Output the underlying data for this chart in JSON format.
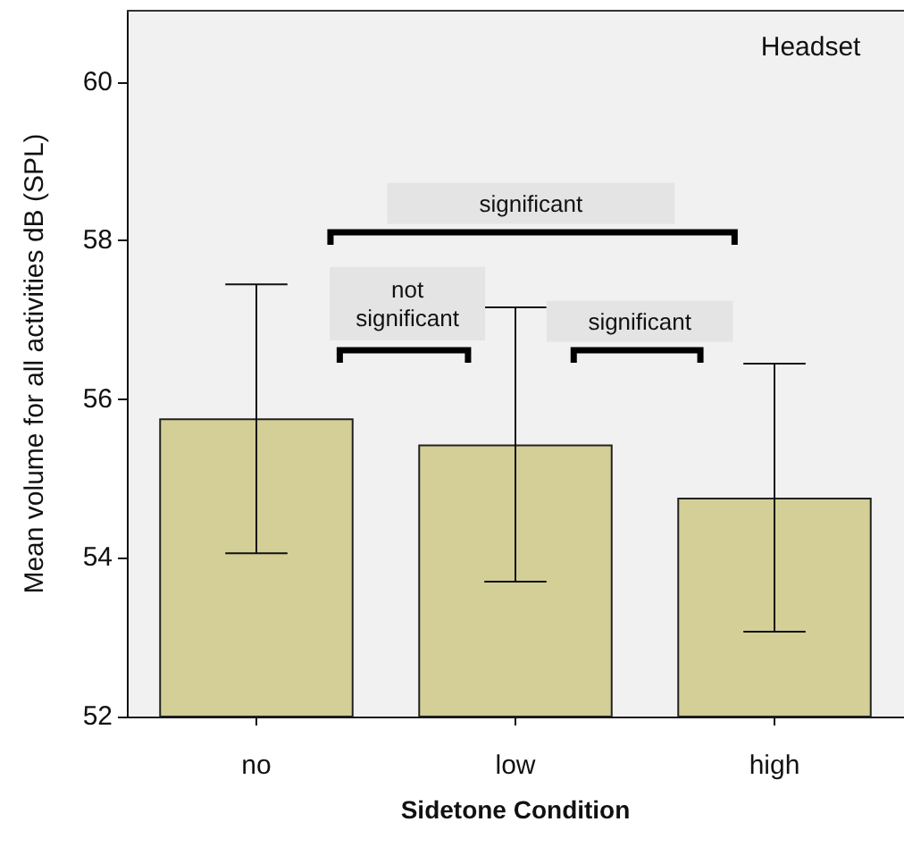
{
  "chart_data": {
    "type": "bar",
    "xlabel": "Sidetone Condition",
    "ylabel": "Mean volume for all activities dB (SPL)",
    "categories": [
      "no",
      "low",
      "high"
    ],
    "values": [
      55.76,
      55.43,
      54.76
    ],
    "errors": [
      [
        54.06,
        57.45
      ],
      [
        53.7,
        57.16
      ],
      [
        53.07,
        56.45
      ]
    ],
    "color": "#d4cf96",
    "ylim": [
      52,
      60.9
    ],
    "yticks": [
      52,
      54,
      56,
      58,
      60
    ],
    "annotations": [
      "Headset",
      "significant",
      "not\nsignificant",
      "significant"
    ]
  }
}
